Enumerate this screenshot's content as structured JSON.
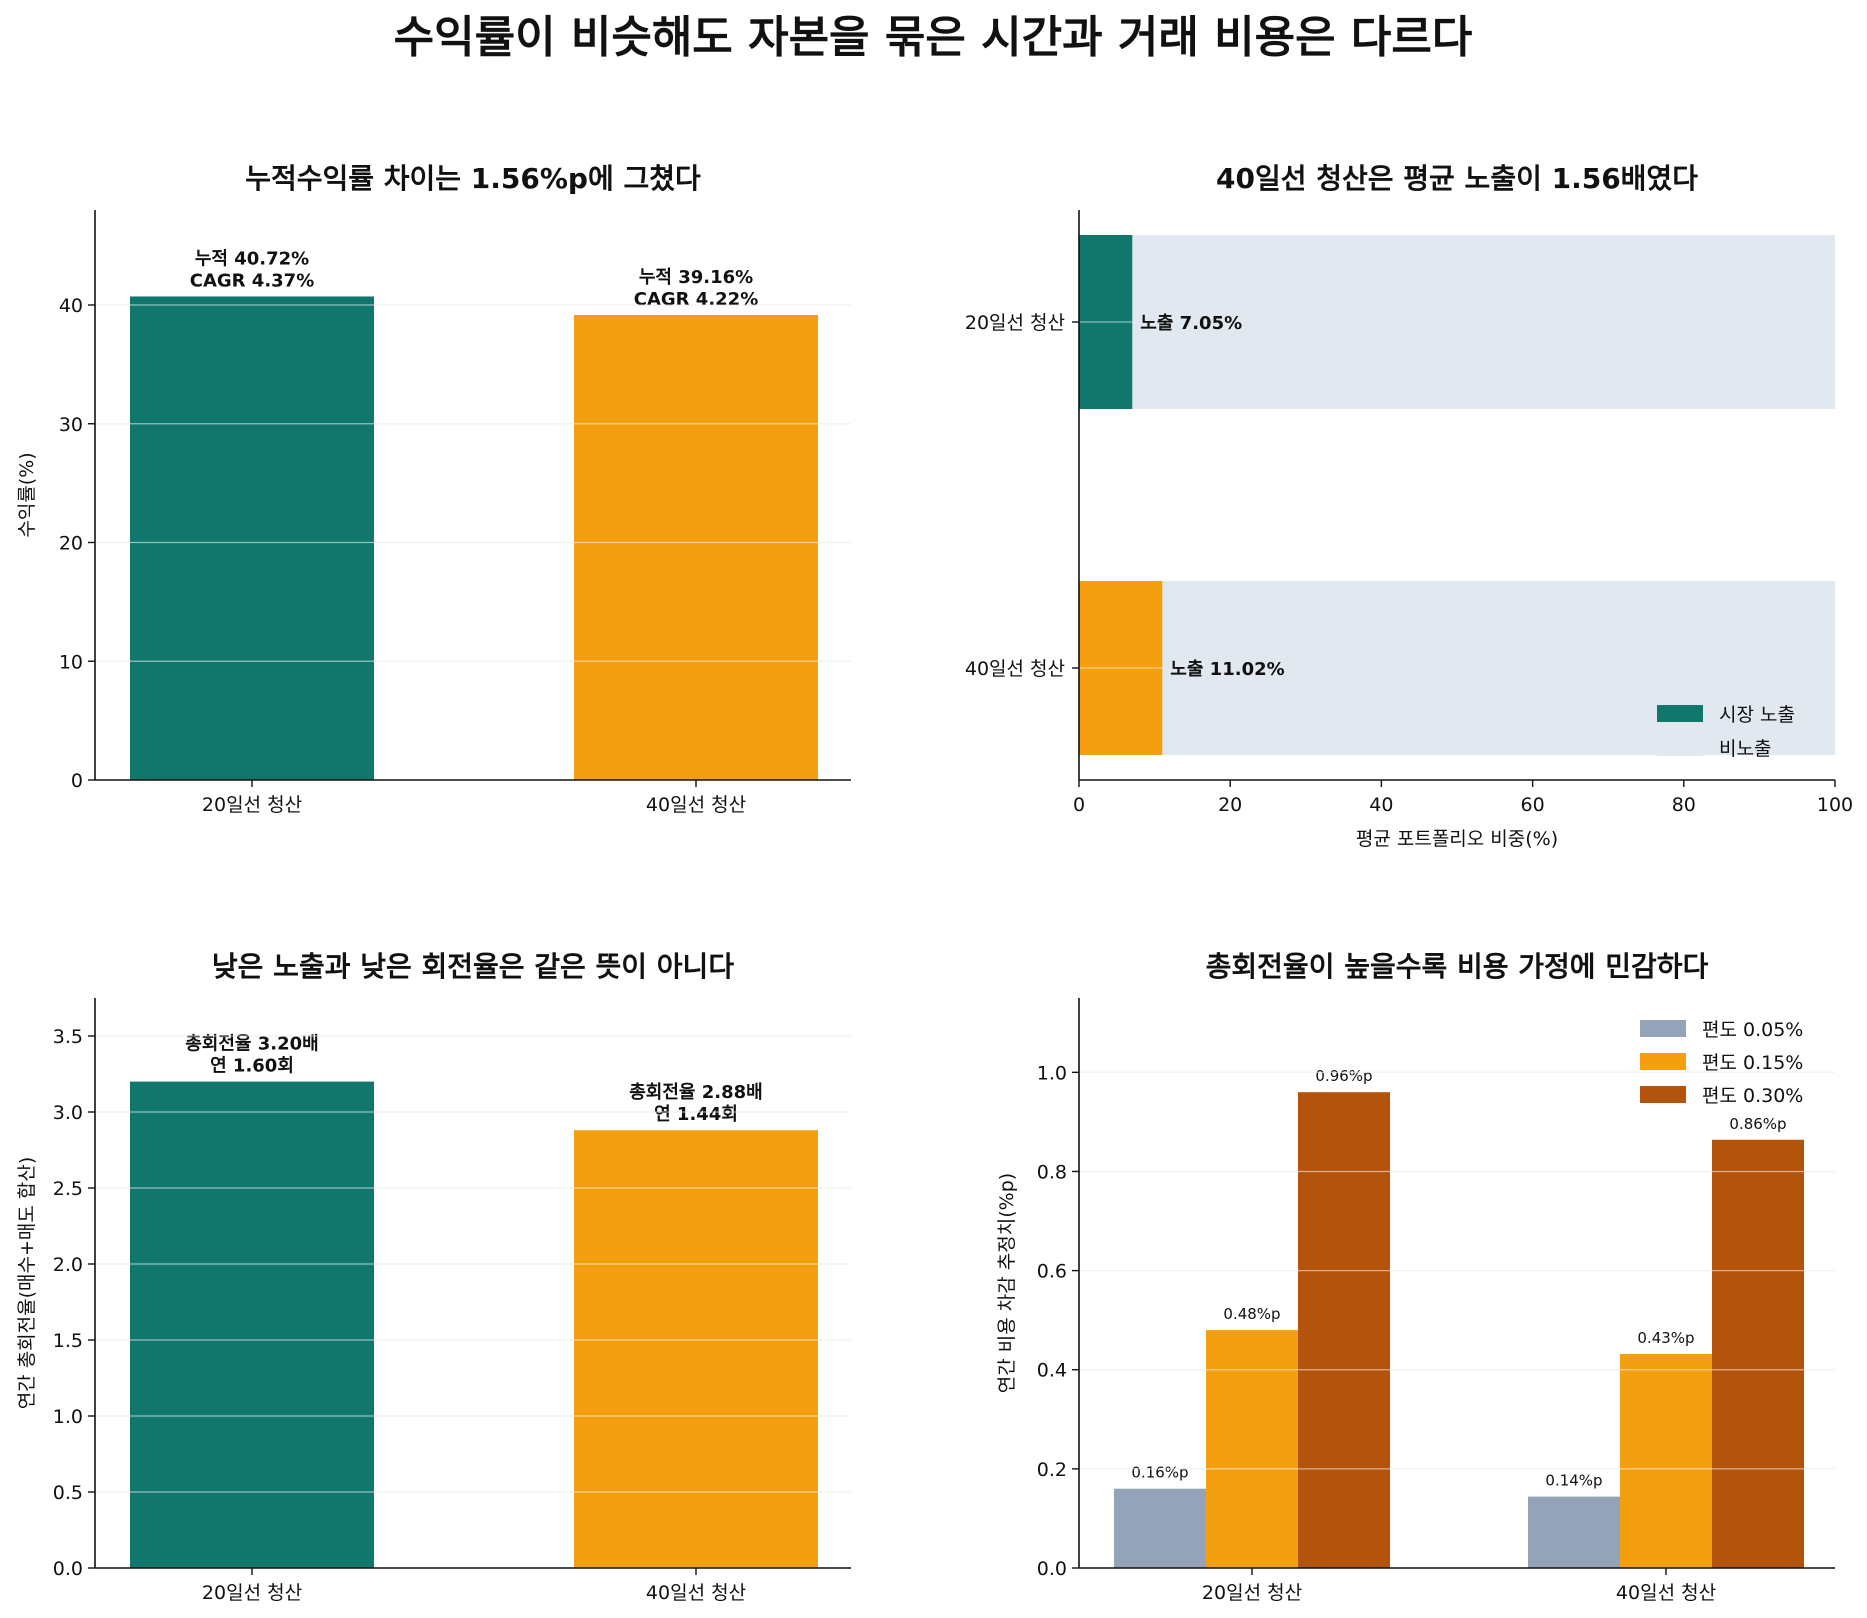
{
  "title": "수익률이 비슷해도 자본을 묶은 시간과 거래 비용은 다르다",
  "colors": {
    "teal": "#11776c",
    "orange": "#f39f0f",
    "rust": "#b4530b",
    "slate": "#94a3b8",
    "unexposed": "#e2e8f0",
    "grid": "#e5e5e5"
  },
  "chart_data": [
    {
      "id": "p1",
      "type": "bar",
      "title": "누적수익률 차이는 1.56%p에 그쳤다",
      "categories": [
        "20일선 청산",
        "40일선 청산"
      ],
      "values": [
        40.72,
        39.16
      ],
      "ylabel": "수익률(%)",
      "ylim": [
        0,
        48
      ],
      "yticks": [
        "0",
        "10",
        "20",
        "30",
        "40"
      ],
      "yticks_values": [
        0,
        10,
        20,
        30,
        40
      ],
      "bar_labels": [
        [
          "누적 40.72%",
          "CAGR 4.37%"
        ],
        [
          "누적 39.16%",
          "CAGR 4.22%"
        ]
      ],
      "grid": "y"
    },
    {
      "id": "p2",
      "type": "bar",
      "orientation": "horizontal-stacked",
      "title": "40일선 청산은 평균 노출이 1.56배였다",
      "categories": [
        "20일선 청산",
        "40일선 청산"
      ],
      "series": [
        {
          "name": "시장 노출",
          "values": [
            7.05,
            11.02
          ]
        },
        {
          "name": "비노출",
          "values": [
            92.95,
            88.98
          ]
        }
      ],
      "bar_labels": [
        "노출 7.05%",
        "노출 11.02%"
      ],
      "xlabel": "평균 포트폴리오 비중(%)",
      "xlim": [
        0,
        100
      ],
      "xticks": [
        "0",
        "20",
        "40",
        "60",
        "80",
        "100"
      ],
      "xticks_values": [
        0,
        20,
        40,
        60,
        80,
        100
      ],
      "legend": "lower-right"
    },
    {
      "id": "p3",
      "type": "bar",
      "title": "낮은 노출과 낮은 회전율은 같은 뜻이 아니다",
      "categories": [
        "20일선 청산",
        "40일선 청산"
      ],
      "values": [
        3.2,
        2.88
      ],
      "ylabel": "연간 총회전율(매수+매도 합산)",
      "ylim": [
        0,
        3.75
      ],
      "yticks": [
        "0.0",
        "0.5",
        "1.0",
        "1.5",
        "2.0",
        "2.5",
        "3.0",
        "3.5"
      ],
      "yticks_values": [
        0,
        0.5,
        1.0,
        1.5,
        2.0,
        2.5,
        3.0,
        3.5
      ],
      "bar_labels": [
        [
          "총회전율 3.20배",
          "연 1.60회"
        ],
        [
          "총회전율 2.88배",
          "연 1.44회"
        ]
      ],
      "grid": "y"
    },
    {
      "id": "p4",
      "type": "bar",
      "title": "총회전율이 높을수록 비용 가정에 민감하다",
      "categories": [
        "20일선 청산",
        "40일선 청산"
      ],
      "series": [
        {
          "name": "편도 0.05%",
          "values": [
            0.16,
            0.144
          ]
        },
        {
          "name": "편도 0.15%",
          "values": [
            0.48,
            0.432
          ]
        },
        {
          "name": "편도 0.30%",
          "values": [
            0.96,
            0.864
          ]
        }
      ],
      "bar_labels": [
        [
          "0.16%p",
          "0.48%p",
          "0.96%p"
        ],
        [
          "0.14%p",
          "0.43%p",
          "0.86%p"
        ]
      ],
      "ylabel": "연간 비용 차감 추정치(%p)",
      "ylim": [
        0,
        1.15
      ],
      "yticks": [
        "0.0",
        "0.2",
        "0.4",
        "0.6",
        "0.8",
        "1.0"
      ],
      "yticks_values": [
        0,
        0.2,
        0.4,
        0.6,
        0.8,
        1.0
      ],
      "legend": "upper-right",
      "grid": "y"
    }
  ]
}
